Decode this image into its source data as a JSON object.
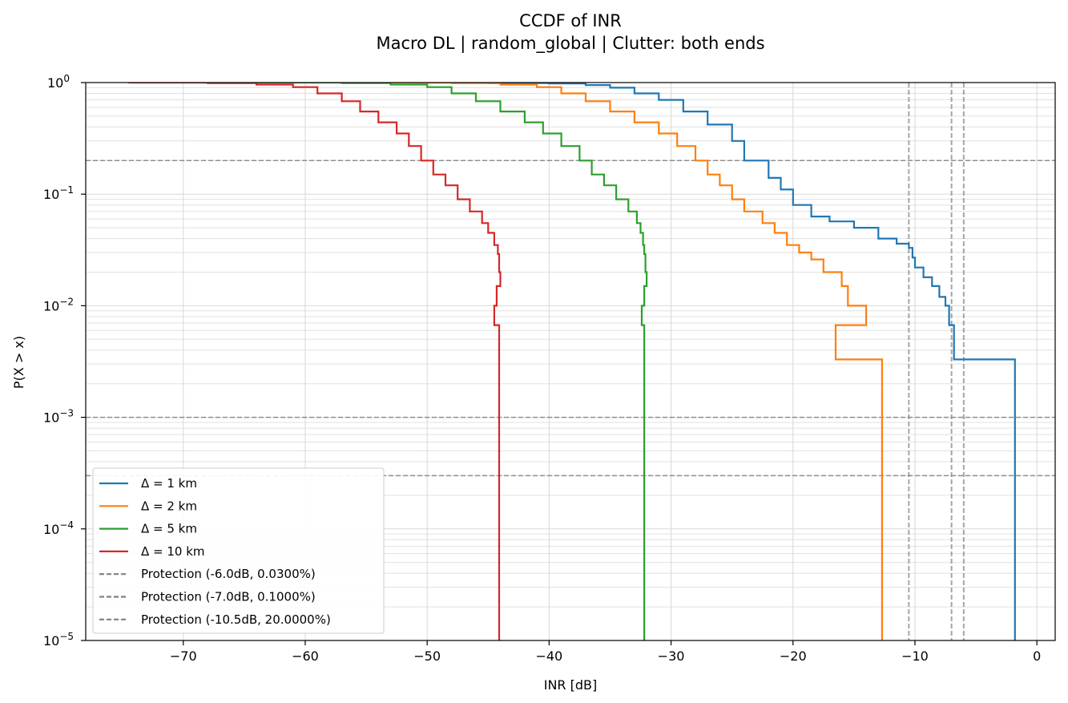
{
  "chart_data": {
    "type": "line",
    "subtype": "step-ccdf",
    "title": "CCDF of INR",
    "subtitle": "Macro DL | random_global | Clutter: both ends",
    "xlabel": "INR [dB]",
    "ylabel": "P(X > x)",
    "xlim": [
      -78,
      1.5
    ],
    "ylim": [
      1e-05,
      1
    ],
    "yscale": "log",
    "grid": true,
    "legend_position": "lower-left",
    "x_ticks": [
      -70,
      -60,
      -50,
      -40,
      -30,
      -20,
      -10,
      0
    ],
    "x_tick_labels": [
      "−70",
      "−60",
      "−50",
      "−40",
      "−30",
      "−20",
      "−10",
      "0"
    ],
    "y_ticks": [
      {
        "value": 1,
        "base": "10",
        "exp": "0"
      },
      {
        "value": 0.1,
        "base": "10",
        "exp": "−1"
      },
      {
        "value": 0.01,
        "base": "10",
        "exp": "−2"
      },
      {
        "value": 0.001,
        "base": "10",
        "exp": "−3"
      },
      {
        "value": 0.0001,
        "base": "10",
        "exp": "−4"
      },
      {
        "value": 1e-05,
        "base": "10",
        "exp": "−5"
      }
    ],
    "series": [
      {
        "name": "Δ = 1 km",
        "color": "#1f77b4",
        "points": [
          [
            -51,
            1.0
          ],
          [
            -45,
            0.99
          ],
          [
            -40,
            0.98
          ],
          [
            -37,
            0.95
          ],
          [
            -35,
            0.9
          ],
          [
            -33,
            0.8
          ],
          [
            -31,
            0.7
          ],
          [
            -29,
            0.55
          ],
          [
            -27,
            0.42
          ],
          [
            -25,
            0.3
          ],
          [
            -24,
            0.2
          ],
          [
            -22,
            0.14
          ],
          [
            -21,
            0.11
          ],
          [
            -20,
            0.08
          ],
          [
            -18.5,
            0.063
          ],
          [
            -17,
            0.057
          ],
          [
            -15,
            0.05
          ],
          [
            -13,
            0.04
          ],
          [
            -11.5,
            0.036
          ],
          [
            -10.5,
            0.033
          ],
          [
            -10.2,
            0.027
          ],
          [
            -10,
            0.022
          ],
          [
            -9.3,
            0.018
          ],
          [
            -8.6,
            0.015
          ],
          [
            -8,
            0.012
          ],
          [
            -7.5,
            0.01
          ],
          [
            -7.2,
            0.0067
          ],
          [
            -6.8,
            0.0033
          ],
          [
            -1.8,
            0.0033
          ],
          [
            -1.8,
            1e-05
          ]
        ]
      },
      {
        "name": "Δ = 2 km",
        "color": "#ff7f0e",
        "points": [
          [
            -55,
            1.0
          ],
          [
            -48,
            0.99
          ],
          [
            -44,
            0.96
          ],
          [
            -41,
            0.91
          ],
          [
            -39,
            0.8
          ],
          [
            -37,
            0.68
          ],
          [
            -35,
            0.55
          ],
          [
            -33,
            0.44
          ],
          [
            -31,
            0.35
          ],
          [
            -29.5,
            0.27
          ],
          [
            -28,
            0.2
          ],
          [
            -27,
            0.15
          ],
          [
            -26,
            0.12
          ],
          [
            -25,
            0.09
          ],
          [
            -24,
            0.07
          ],
          [
            -22.5,
            0.055
          ],
          [
            -21.5,
            0.045
          ],
          [
            -20.5,
            0.035
          ],
          [
            -19.5,
            0.03
          ],
          [
            -18.5,
            0.026
          ],
          [
            -17.5,
            0.02
          ],
          [
            -16,
            0.015
          ],
          [
            -15.5,
            0.01
          ],
          [
            -14,
            0.0067
          ],
          [
            -16.5,
            0.0067
          ],
          [
            -16.5,
            0.0033
          ],
          [
            -12.7,
            0.0033
          ],
          [
            -12.7,
            1e-05
          ]
        ]
      },
      {
        "name": "Δ = 5 km",
        "color": "#2ca02c",
        "points": [
          [
            -64,
            1.0
          ],
          [
            -57,
            0.99
          ],
          [
            -53,
            0.96
          ],
          [
            -50,
            0.91
          ],
          [
            -48,
            0.8
          ],
          [
            -46,
            0.68
          ],
          [
            -44,
            0.55
          ],
          [
            -42,
            0.44
          ],
          [
            -40.5,
            0.35
          ],
          [
            -39,
            0.27
          ],
          [
            -37.5,
            0.2
          ],
          [
            -36.5,
            0.15
          ],
          [
            -35.5,
            0.12
          ],
          [
            -34.5,
            0.09
          ],
          [
            -33.5,
            0.07
          ],
          [
            -32.8,
            0.055
          ],
          [
            -32.5,
            0.045
          ],
          [
            -32.3,
            0.035
          ],
          [
            -32.2,
            0.029
          ],
          [
            -32.1,
            0.02
          ],
          [
            -32,
            0.015
          ],
          [
            -32.2,
            0.01
          ],
          [
            -32.4,
            0.0067
          ],
          [
            -32.2,
            0.0033
          ],
          [
            -32.2,
            1e-05
          ]
        ]
      },
      {
        "name": "Δ = 10 km",
        "color": "#d62728",
        "points": [
          [
            -74.5,
            1.0
          ],
          [
            -68,
            0.99
          ],
          [
            -64,
            0.96
          ],
          [
            -61,
            0.91
          ],
          [
            -59,
            0.8
          ],
          [
            -57,
            0.68
          ],
          [
            -55.5,
            0.55
          ],
          [
            -54,
            0.44
          ],
          [
            -52.5,
            0.35
          ],
          [
            -51.5,
            0.27
          ],
          [
            -50.5,
            0.2
          ],
          [
            -49.5,
            0.15
          ],
          [
            -48.5,
            0.12
          ],
          [
            -47.5,
            0.09
          ],
          [
            -46.5,
            0.07
          ],
          [
            -45.5,
            0.055
          ],
          [
            -45,
            0.045
          ],
          [
            -44.5,
            0.035
          ],
          [
            -44.2,
            0.029
          ],
          [
            -44.1,
            0.02
          ],
          [
            -44,
            0.015
          ],
          [
            -44.3,
            0.01
          ],
          [
            -44.5,
            0.0067
          ],
          [
            -44.1,
            0.0033
          ],
          [
            -44.1,
            1e-05
          ]
        ]
      }
    ],
    "reference_lines": [
      {
        "label": "Protection (-6.0dB, 0.0300%)",
        "x": -6.0,
        "p": 0.0003
      },
      {
        "label": "Protection (-7.0dB, 0.1000%)",
        "x": -7.0,
        "p": 0.001
      },
      {
        "label": "Protection (-10.5dB, 20.0000%)",
        "x": -10.5,
        "p": 0.2
      }
    ],
    "colors": {
      "reference": "#808080",
      "grid": "#e0e0e0",
      "axis": "#000000"
    }
  }
}
